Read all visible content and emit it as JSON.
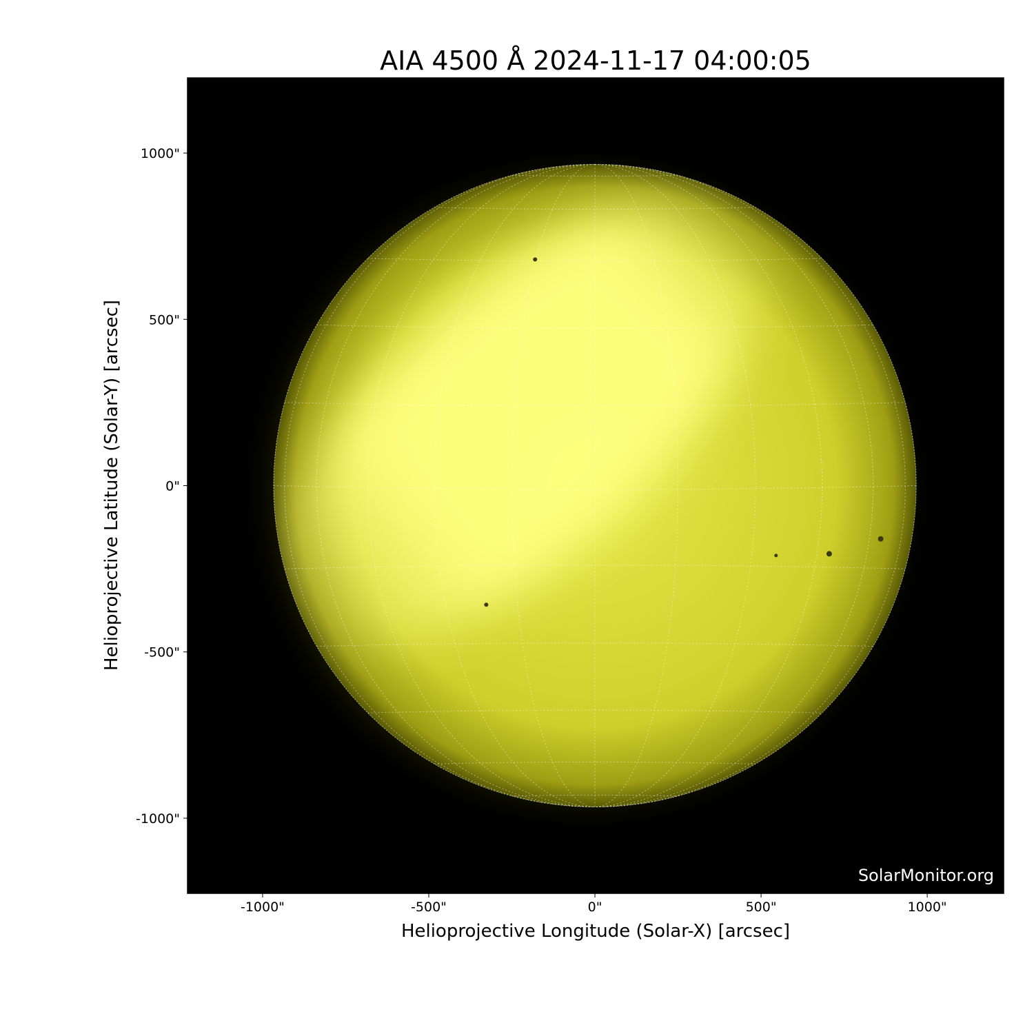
{
  "chart_data": {
    "type": "image",
    "title": "AIA 4500 Å 2024-11-17 04:00:05",
    "xlabel": "Helioprojective Longitude (Solar-X) [arcsec]",
    "ylabel": "Helioprojective Latitude (Solar-Y) [arcsec]",
    "xlim": [
      -1226,
      1230
    ],
    "ylim": [
      -1226,
      1226
    ],
    "x_ticks": [
      -1000,
      -500,
      0,
      500,
      1000
    ],
    "y_ticks": [
      1000,
      500,
      0,
      -500,
      -1000
    ],
    "x_tick_labels": [
      "-1000\"",
      "-500\"",
      "0\"",
      "500\"",
      "1000\""
    ],
    "y_tick_labels": [
      "1000\"",
      "500\"",
      "0\"",
      "-500\"",
      "-1000\""
    ],
    "solar_radius_arcsec": 967,
    "grid": "heliographic, dotted",
    "colormap": "black-to-yellow",
    "colors": {
      "background": "#000000",
      "disk": "#c8c820",
      "bright": "#ffff80"
    },
    "watermark": "SolarMonitor.org"
  }
}
